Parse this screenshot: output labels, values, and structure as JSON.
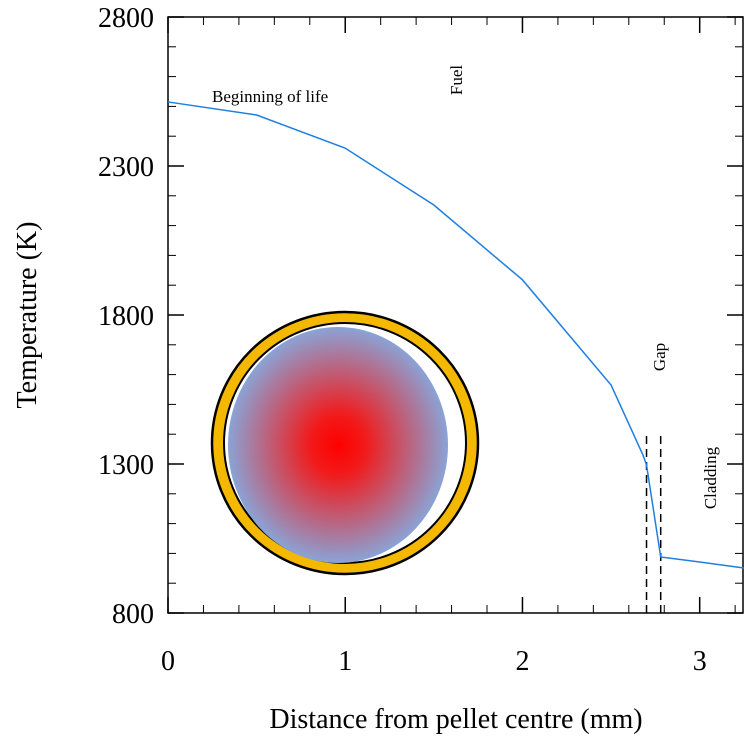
{
  "chart_data": {
    "type": "line",
    "x_label": "Distance from pellet centre (mm)",
    "y_label": "Temperature (K)",
    "x": [
      0,
      0.5,
      1,
      1.5,
      2,
      2.5,
      2.68,
      2.7,
      2.78,
      3,
      3.25
    ],
    "series": [
      {
        "name": "Beginning of life",
        "color": "#1e7fe0",
        "values": [
          2515,
          2471,
          2360,
          2169,
          1918,
          1565,
          1330,
          1297,
          988,
          971,
          951
        ]
      }
    ],
    "xlim": [
      0,
      3.25
    ],
    "xticks": [
      0,
      1,
      2,
      3
    ],
    "ylim": [
      800,
      2800
    ],
    "yticks": [
      800,
      1300,
      1800,
      2300,
      2800
    ],
    "boundaries": [
      2.7,
      2.78
    ],
    "annotations": {
      "fuel": "Fuel",
      "gap": "Gap",
      "cladding": "Cladding"
    }
  }
}
